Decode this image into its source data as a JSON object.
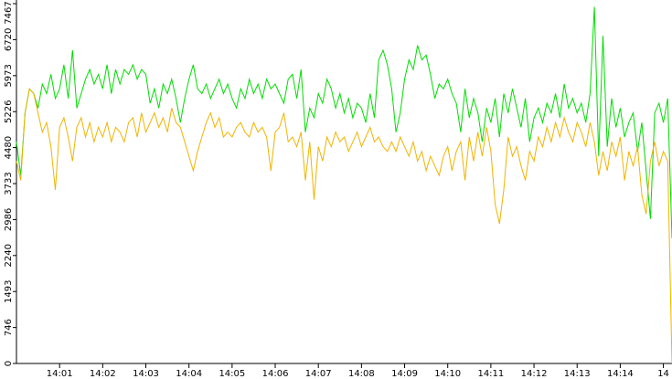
{
  "chart_data": {
    "type": "line",
    "series": [
      {
        "color": "#00dd00",
        "values": [
          4600,
          3900,
          5200,
          5700,
          5600,
          5300,
          5800,
          5600,
          6000,
          5500,
          5700,
          6200,
          5500,
          6500,
          5300,
          5600,
          5900,
          6100,
          5800,
          6000,
          5700,
          6200,
          5600,
          6100,
          5800,
          6100,
          6000,
          6200,
          5900,
          6100,
          6000,
          5400,
          5700,
          5300,
          5800,
          5600,
          5900,
          5500,
          5000,
          5500,
          5900,
          6200,
          5700,
          5600,
          5800,
          5500,
          5700,
          5900,
          5600,
          5800,
          5500,
          5300,
          5700,
          5500,
          5900,
          5600,
          5800,
          5500,
          5900,
          5700,
          5800,
          5600,
          5400,
          5900,
          6000,
          5500,
          6100,
          4800,
          5300,
          5100,
          5600,
          5400,
          5900,
          5700,
          5300,
          5600,
          5200,
          5500,
          5100,
          5400,
          5300,
          5000,
          5600,
          5100,
          6300,
          6500,
          6200,
          5700,
          4800,
          5200,
          5900,
          6300,
          6100,
          6600,
          6300,
          6400,
          6000,
          5500,
          5800,
          5700,
          5900,
          5600,
          5400,
          4800,
          5700,
          5100,
          5500,
          5200,
          4600,
          5300,
          5000,
          5500,
          4700,
          5600,
          5200,
          5700,
          5300,
          4900,
          5500,
          4600,
          5100,
          5300,
          5000,
          5400,
          5200,
          5600,
          5100,
          5800,
          5300,
          5500,
          5200,
          5400,
          5000,
          5600,
          7400,
          4300,
          6800,
          4500,
          5500,
          4900,
          5300,
          4700,
          5000,
          5200,
          4400,
          5000,
          4000,
          3000,
          5200,
          5400,
          5000,
          5500,
          2600
        ]
      },
      {
        "color": "#f0b400",
        "values": [
          4200,
          3800,
          5200,
          5700,
          5600,
          5200,
          4800,
          5000,
          4500,
          3600,
          4900,
          5100,
          4700,
          4200,
          4900,
          5100,
          4700,
          5000,
          4600,
          4900,
          4700,
          5000,
          4600,
          4900,
          4800,
          4600,
          5000,
          5100,
          4700,
          5200,
          4800,
          5000,
          5200,
          4900,
          5100,
          4800,
          5300,
          5000,
          4900,
          4600,
          4300,
          4000,
          4400,
          4700,
          5000,
          5200,
          4900,
          5100,
          4700,
          4800,
          4700,
          4900,
          5000,
          4800,
          4700,
          5000,
          4800,
          4900,
          4700,
          4000,
          4800,
          4900,
          5200,
          4600,
          4700,
          4500,
          4800,
          3800,
          4600,
          3400,
          4500,
          4200,
          4700,
          4500,
          4800,
          4600,
          4700,
          4400,
          4600,
          4800,
          4500,
          4700,
          4900,
          4600,
          4700,
          4500,
          4400,
          4600,
          4400,
          4700,
          4500,
          4300,
          4600,
          4200,
          4400,
          4000,
          4300,
          4100,
          3900,
          4300,
          4500,
          4000,
          4400,
          4600,
          3800,
          4700,
          4200,
          4800,
          4300,
          4900,
          4400,
          3300,
          2900,
          3600,
          4700,
          4300,
          4500,
          4100,
          3800,
          4400,
          4200,
          4700,
          4500,
          4900,
          4600,
          5000,
          4700,
          5100,
          4800,
          4600,
          5000,
          4800,
          4500,
          5000,
          4600,
          3900,
          4400,
          4000,
          4600,
          4300,
          4700,
          3800,
          4400,
          4100,
          4500,
          3500,
          3100,
          4200,
          4600,
          4100,
          4400,
          4200,
          0
        ]
      }
    ],
    "xlim": [
      0,
      152
    ],
    "xticks": [
      {
        "value": 10,
        "label": "14:01"
      },
      {
        "value": 20,
        "label": "14:02"
      },
      {
        "value": 30,
        "label": "14:03"
      },
      {
        "value": 40,
        "label": "14:04"
      },
      {
        "value": 50,
        "label": "14:05"
      },
      {
        "value": 60,
        "label": "14:06"
      },
      {
        "value": 70,
        "label": "14:07"
      },
      {
        "value": 80,
        "label": "14:08"
      },
      {
        "value": 90,
        "label": "14:09"
      },
      {
        "value": 100,
        "label": "14:10"
      },
      {
        "value": 110,
        "label": "14:11"
      },
      {
        "value": 120,
        "label": "14:12"
      },
      {
        "value": 130,
        "label": "14:13"
      },
      {
        "value": 140,
        "label": "14:14"
      },
      {
        "value": 150,
        "label": "14"
      }
    ],
    "ylim": [
      0,
      7467
    ],
    "yticks": [
      0,
      746,
      1493,
      2240,
      2986,
      3733,
      4480,
      5226,
      5973,
      6720,
      7467
    ]
  }
}
